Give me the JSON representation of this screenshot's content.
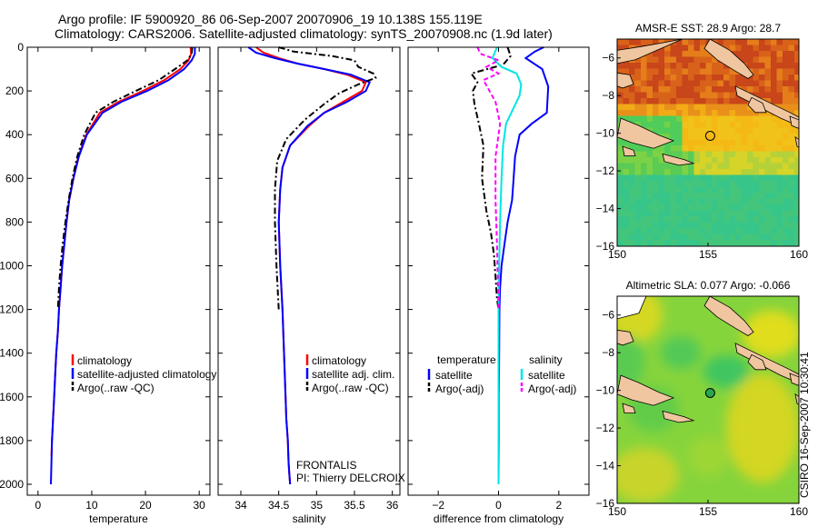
{
  "title": {
    "line1": "Argo profile: IF 5900920_86 06-Sep-2007 20070906_19 10.138S 155.119E",
    "line2": "Climatology: CARS2006. Satellite-adjusted climatology: synTS_20070908.nc (1.9d later)"
  },
  "side_stamp": "CSIRO 16-Sep-2007 10:30:41",
  "colors": {
    "red": "#ff0000",
    "blue": "#0000ff",
    "black": "#000000",
    "cyan": "#00e5e5",
    "magenta": "#ff00ff"
  },
  "chart_data": [
    {
      "id": "temp",
      "type": "line",
      "xlabel": "temperature",
      "xlim": [
        -2,
        32
      ],
      "ylim": [
        2050,
        0
      ],
      "xticks": [
        0,
        10,
        20,
        30
      ],
      "yticks": [
        0,
        200,
        400,
        600,
        800,
        1000,
        1200,
        1400,
        1600,
        1800,
        2000
      ],
      "legend": {
        "position": "bottom-right",
        "entries": [
          "climatology",
          "satellite-adjusted climatology",
          "Argo(..raw -QC)"
        ]
      },
      "series": [
        {
          "name": "climatology",
          "color": "red",
          "dash": "solid",
          "x": [
            28.4,
            28.5,
            28.0,
            26.5,
            23.5,
            19.5,
            15,
            11.5,
            9,
            7.5,
            6.6,
            5.8,
            5.3,
            4.9,
            4.5,
            4.2,
            3.9,
            3.7,
            3.4,
            3.2,
            3,
            2.8,
            2.6,
            2.5
          ],
          "y": [
            0,
            30,
            60,
            100,
            150,
            200,
            250,
            300,
            400,
            500,
            600,
            700,
            800,
            900,
            1000,
            1100,
            1200,
            1300,
            1400,
            1500,
            1600,
            1700,
            1800,
            1870
          ]
        },
        {
          "name": "satellite-adjusted climatology",
          "color": "blue",
          "dash": "solid",
          "x": [
            29.2,
            29.2,
            28.6,
            27.2,
            24.3,
            20.3,
            15.5,
            12,
            9.1,
            7.6,
            6.6,
            5.8,
            5.3,
            4.9,
            4.5,
            4.2,
            3.9,
            3.7,
            3.4,
            3.2,
            3,
            2.8,
            2.6,
            2.5,
            2.4
          ],
          "y": [
            0,
            30,
            60,
            100,
            150,
            200,
            250,
            300,
            400,
            500,
            600,
            700,
            800,
            900,
            1000,
            1100,
            1200,
            1300,
            1400,
            1500,
            1600,
            1700,
            1800,
            1900,
            2000
          ]
        },
        {
          "name": "Argo(..raw -QC)",
          "color": "black",
          "dash": "dashdot",
          "x": [
            28.7,
            28.6,
            27.8,
            25.5,
            22.5,
            18.2,
            14,
            10.7,
            8.6,
            7.3,
            6.4,
            5.7,
            5.1,
            4.6,
            4.2,
            3.9,
            3.7
          ],
          "y": [
            0,
            30,
            60,
            100,
            150,
            200,
            250,
            300,
            400,
            500,
            600,
            700,
            800,
            900,
            1000,
            1100,
            1200
          ]
        }
      ]
    },
    {
      "id": "sal",
      "type": "line",
      "xlabel": "salinity",
      "xlim": [
        33.7,
        36.1
      ],
      "ylim": [
        2050,
        0
      ],
      "xticks": [
        34,
        34.5,
        35,
        35.5,
        36
      ],
      "legend": {
        "position": "bottom-right",
        "entries": [
          "climatology",
          "satellite adj. clim.",
          "Argo(..raw -QC)"
        ]
      },
      "annotation": [
        "FRONTALIS",
        "PI: Thierry DELCROIX"
      ],
      "series": [
        {
          "name": "climatology",
          "color": "red",
          "dash": "solid",
          "x": [
            34.2,
            34.3,
            34.5,
            34.75,
            35.1,
            35.4,
            35.65,
            35.6,
            35.35,
            35.1,
            34.9,
            34.65,
            34.55,
            34.52,
            34.5,
            34.52,
            34.55,
            34.57,
            34.59,
            34.6,
            34.62,
            34.63,
            34.64,
            34.65
          ],
          "y": [
            0,
            25,
            50,
            75,
            100,
            125,
            160,
            200,
            250,
            300,
            360,
            450,
            550,
            650,
            800,
            1000,
            1200,
            1400,
            1600,
            1700,
            1800,
            1900,
            1950,
            2000
          ]
        },
        {
          "name": "satellite adj. clim.",
          "color": "blue",
          "dash": "solid",
          "x": [
            34.1,
            34.2,
            34.45,
            34.75,
            35.1,
            35.45,
            35.7,
            35.65,
            35.4,
            35.1,
            34.88,
            34.65,
            34.55,
            34.52,
            34.5,
            34.52,
            34.55,
            34.57,
            34.59,
            34.6,
            34.62,
            34.63,
            34.64,
            34.65
          ],
          "y": [
            0,
            25,
            50,
            75,
            100,
            125,
            160,
            200,
            250,
            300,
            360,
            450,
            550,
            650,
            800,
            1000,
            1200,
            1400,
            1600,
            1700,
            1800,
            1900,
            1950,
            2000
          ]
        },
        {
          "name": "Argo(..raw -QC)",
          "color": "black",
          "dash": "dashdot",
          "x": [
            34.5,
            34.7,
            35.2,
            35.5,
            35.55,
            35.75,
            35.78,
            35.55,
            35.3,
            35.1,
            34.85,
            34.6,
            34.48,
            34.45,
            34.45,
            34.47,
            34.5
          ],
          "y": [
            0,
            20,
            40,
            60,
            90,
            120,
            140,
            170,
            210,
            260,
            330,
            420,
            520,
            650,
            800,
            1000,
            1200
          ]
        }
      ]
    },
    {
      "id": "diff",
      "type": "line",
      "xlabel": "difference from climatology",
      "xlim": [
        -3,
        3
      ],
      "ylim": [
        2050,
        0
      ],
      "xticks": [
        -2,
        0,
        2
      ],
      "legend": {
        "position": "bottom",
        "headers": [
          "temperature",
          "salinity"
        ],
        "entries": [
          "satellite",
          "Argo(-adj)",
          "satellite",
          "Argo(-adj)"
        ]
      },
      "series": [
        {
          "name": "temperature satellite",
          "color": "blue",
          "dash": "solid",
          "x": [
            1.5,
            1.2,
            0.9,
            1.45,
            1.65,
            1.6,
            1.1,
            0.7,
            0.55,
            0.5,
            0.45,
            0.3,
            0.2,
            0.1,
            0.05,
            0.03,
            0.02,
            0.01,
            0.01,
            0.0
          ],
          "y": [
            0,
            20,
            50,
            100,
            180,
            300,
            350,
            400,
            500,
            600,
            700,
            800,
            900,
            1000,
            1100,
            1200,
            1400,
            1600,
            1800,
            2000
          ]
        },
        {
          "name": "temperature Argo(-adj)",
          "color": "black",
          "dash": "dashdot",
          "x": [
            0.3,
            0.4,
            0.15,
            -0.9,
            -0.7,
            -0.85,
            -0.8,
            -0.65,
            -0.5,
            -0.55,
            -0.4,
            -0.25,
            -0.15,
            -0.1,
            -0.05,
            0.0
          ],
          "y": [
            0,
            40,
            80,
            120,
            160,
            200,
            260,
            350,
            450,
            600,
            750,
            850,
            950,
            1050,
            1150,
            1200
          ]
        },
        {
          "name": "salinity satellite",
          "color": "cyan",
          "dash": "solid",
          "x": [
            -0.05,
            -0.2,
            0.1,
            0.6,
            0.75,
            0.7,
            0.25,
            0.15,
            0.1,
            0.05,
            0.02,
            0.0,
            0.0,
            0.0,
            0.0
          ],
          "y": [
            0,
            50,
            90,
            120,
            170,
            220,
            350,
            450,
            600,
            800,
            1000,
            1200,
            1500,
            1800,
            2000
          ]
        },
        {
          "name": "salinity Argo(-adj)",
          "color": "magenta",
          "dash": "dashed",
          "x": [
            -0.7,
            -0.6,
            0.0,
            -0.4,
            0.0,
            -0.5,
            -0.1,
            0.05,
            -0.1,
            -0.1,
            -0.05,
            0.0
          ],
          "y": [
            0,
            30,
            60,
            90,
            120,
            150,
            250,
            350,
            500,
            700,
            900,
            1200
          ]
        }
      ]
    },
    {
      "id": "sst_map",
      "type": "heatmap",
      "title": "AMSR-E SST: 28.9 Argo: 28.7",
      "xlim": [
        150,
        160
      ],
      "ylim": [
        -16,
        -5
      ],
      "xticks": [
        150,
        155,
        160
      ],
      "yticks": [
        -6,
        -8,
        -10,
        -12,
        -14,
        -16
      ],
      "marker": {
        "lon": 155.119,
        "lat": -10.138
      }
    },
    {
      "id": "sla_map",
      "type": "heatmap",
      "title": "Altimetric SLA: 0.077 Argo: -0.066",
      "xlim": [
        150,
        160
      ],
      "ylim": [
        -16,
        -5
      ],
      "xticks": [
        150,
        155,
        160
      ],
      "yticks": [
        -6,
        -8,
        -10,
        -12,
        -14,
        -16
      ],
      "marker": {
        "lon": 155.119,
        "lat": -10.138
      }
    }
  ]
}
